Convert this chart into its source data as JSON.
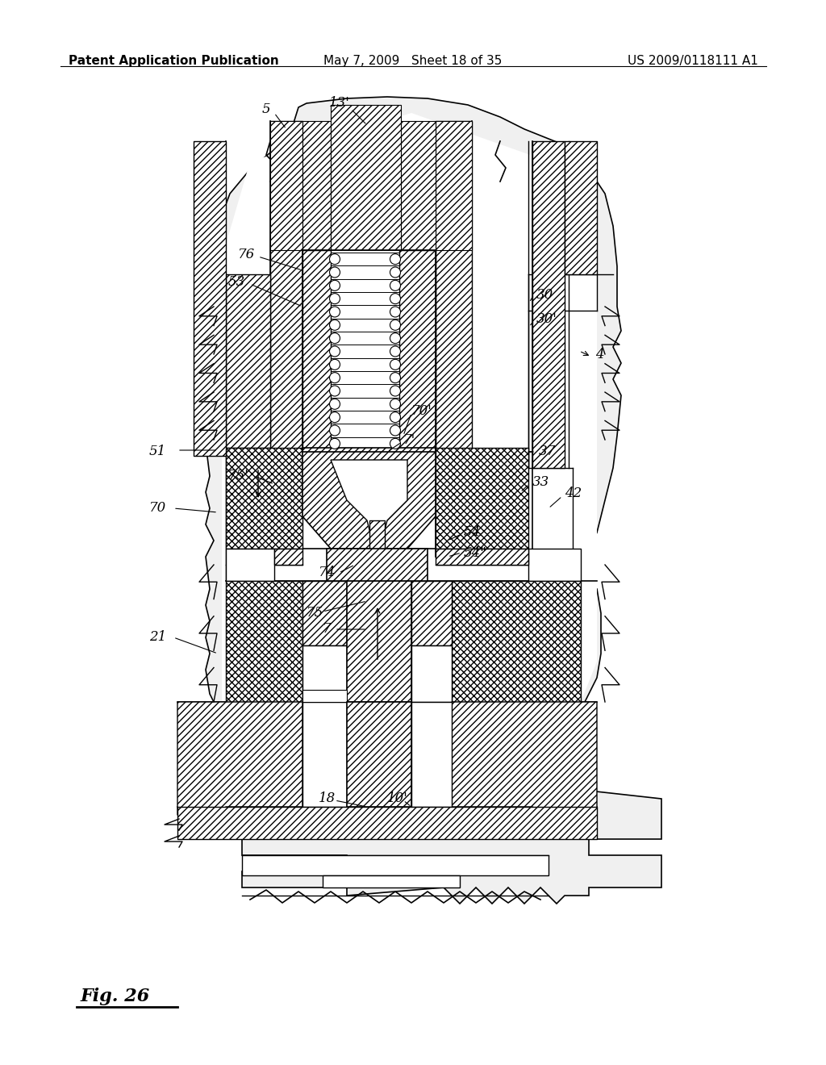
{
  "title_left": "Patent Application Publication",
  "title_center": "May 7, 2009   Sheet 18 of 35",
  "title_right": "US 2009/0118111 A1",
  "fig_label": "Fig. 26",
  "bg_color": "#ffffff",
  "line_color": "#000000",
  "title_fontsize": 11,
  "label_fontsize": 11
}
